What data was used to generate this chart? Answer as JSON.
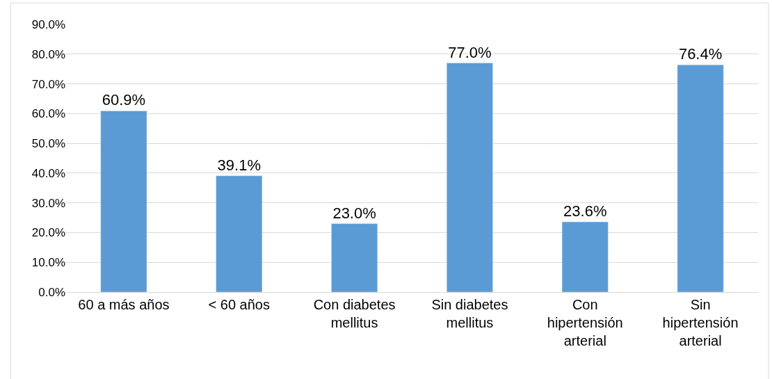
{
  "chart_data": {
    "type": "bar",
    "categories": [
      "60 a más años",
      "< 60 años",
      "Con diabetes mellitus",
      "Sin diabetes mellitus",
      "Con hipertensión arterial",
      "Sin hipertensión arterial"
    ],
    "values": [
      60.9,
      39.1,
      23.0,
      77.0,
      23.6,
      76.4
    ],
    "value_labels": [
      "60.9%",
      "39.1%",
      "23.0%",
      "77.0%",
      "23.6%",
      "76.4%"
    ],
    "color": "#5b9bd5",
    "ylim": [
      0,
      90
    ],
    "yticks": [
      {
        "value": 0,
        "label": "0.0%"
      },
      {
        "value": 10,
        "label": "10.0%"
      },
      {
        "value": 20,
        "label": "20.0%"
      },
      {
        "value": 30,
        "label": "30.0%"
      },
      {
        "value": 40,
        "label": "40.0%"
      },
      {
        "value": 50,
        "label": "50.0%"
      },
      {
        "value": 60,
        "label": "60.0%"
      },
      {
        "value": 70,
        "label": "70.0%"
      },
      {
        "value": 80,
        "label": "80.0%"
      },
      {
        "value": 90,
        "label": "90.0%"
      }
    ],
    "grid": "y",
    "legend": false
  }
}
